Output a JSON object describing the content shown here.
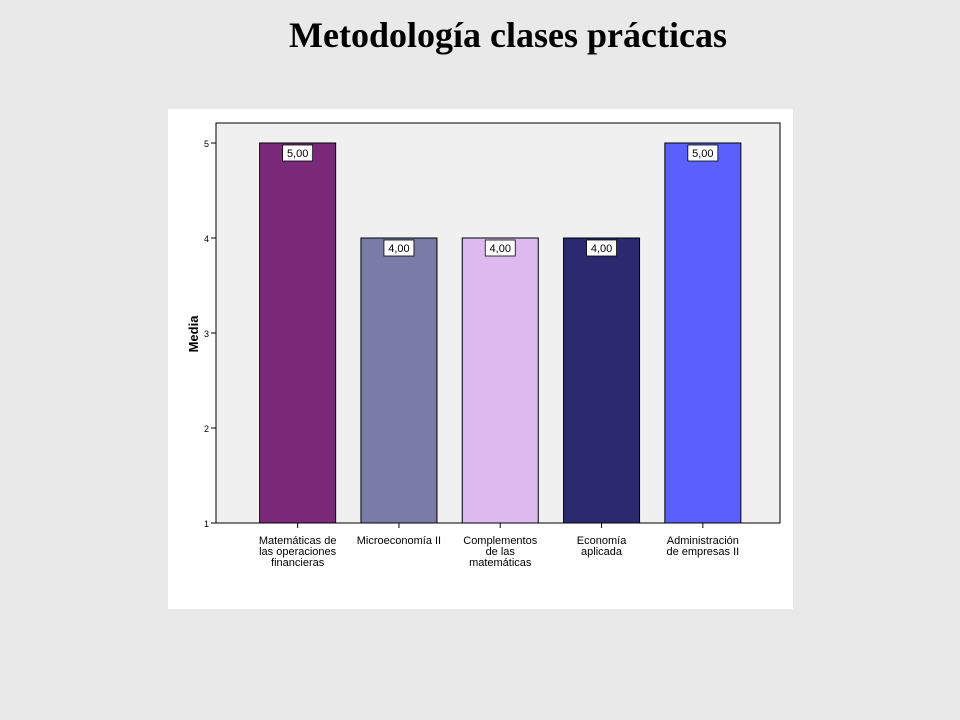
{
  "slide": {
    "title": "Metodología clases prácticas"
  },
  "chart_data": {
    "type": "bar",
    "title": "",
    "xlabel": "",
    "ylabel": "Media",
    "ylim": [
      1,
      5
    ],
    "yticks": [
      "1",
      "2",
      "3",
      "4",
      "5"
    ],
    "ytick_values": [
      1,
      2,
      3,
      4,
      5
    ],
    "grid": false,
    "categories": [
      [
        "Matemáticas de",
        "las operaciones",
        "financieras"
      ],
      [
        "Microeconomía II"
      ],
      [
        "Complementos",
        "de las",
        "matemáticas"
      ],
      [
        "Economía",
        "aplicada"
      ],
      [
        "Administración",
        "de empresas II"
      ]
    ],
    "values": [
      5.0,
      4.0,
      4.0,
      4.0,
      5.0
    ],
    "data_labels": [
      "5,00",
      "4,00",
      "4,00",
      "4,00",
      "5,00"
    ],
    "colors": [
      "#7b2a7a",
      "#7b7ba8",
      "#dcbaf0",
      "#2b2a71",
      "#5b60fc"
    ],
    "plot_background": "#f0f0f0"
  }
}
